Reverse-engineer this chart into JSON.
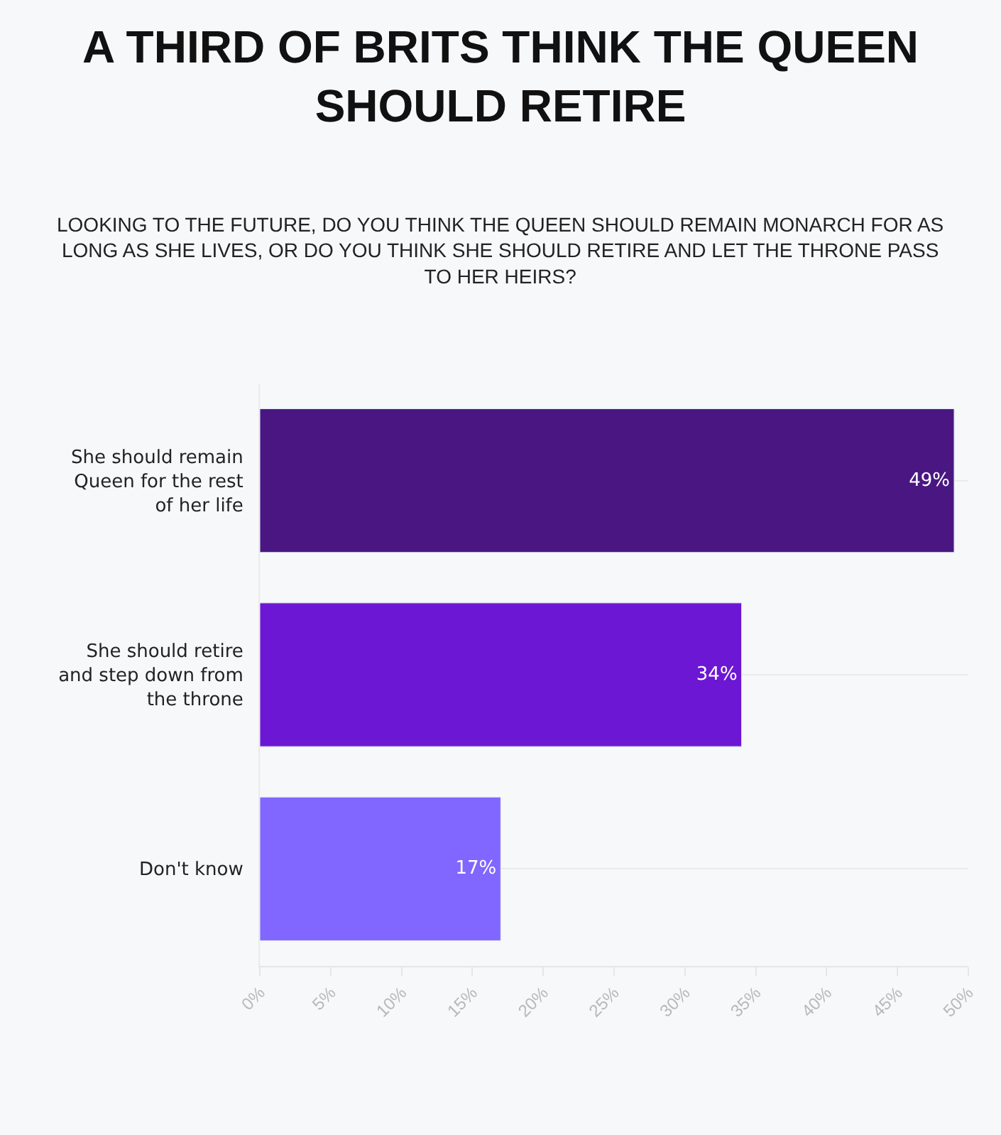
{
  "chart_data": {
    "type": "bar",
    "orientation": "horizontal",
    "title": "A THIRD OF BRITS THINK THE QUEEN SHOULD RETIRE",
    "subtitle": "LOOKING TO THE FUTURE, DO YOU THINK THE QUEEN SHOULD REMAIN MONARCH FOR AS LONG AS SHE LIVES, OR DO YOU THINK SHE SHOULD RETIRE AND LET THE THRONE PASS TO HER HEIRS?",
    "categories": [
      "She should remain Queen for the rest of her life",
      "She should retire and step down from the throne",
      "Don't know"
    ],
    "values": [
      49,
      34,
      17
    ],
    "colors": [
      "#4a1782",
      "#6c17d4",
      "#8167ff"
    ],
    "value_labels": [
      "49%",
      "34%",
      "17%"
    ],
    "xlim": [
      0,
      50
    ],
    "xticks": [
      {
        "value": 0,
        "label": "0%"
      },
      {
        "value": 5,
        "label": "5%"
      },
      {
        "value": 10,
        "label": "10%"
      },
      {
        "value": 15,
        "label": "15%"
      },
      {
        "value": 20,
        "label": "20%"
      },
      {
        "value": 25,
        "label": "25%"
      },
      {
        "value": 30,
        "label": "30%"
      },
      {
        "value": 35,
        "label": "35%"
      },
      {
        "value": 40,
        "label": "40%"
      },
      {
        "value": 45,
        "label": "45%"
      },
      {
        "value": 50,
        "label": "50%"
      }
    ],
    "grid": "y"
  }
}
